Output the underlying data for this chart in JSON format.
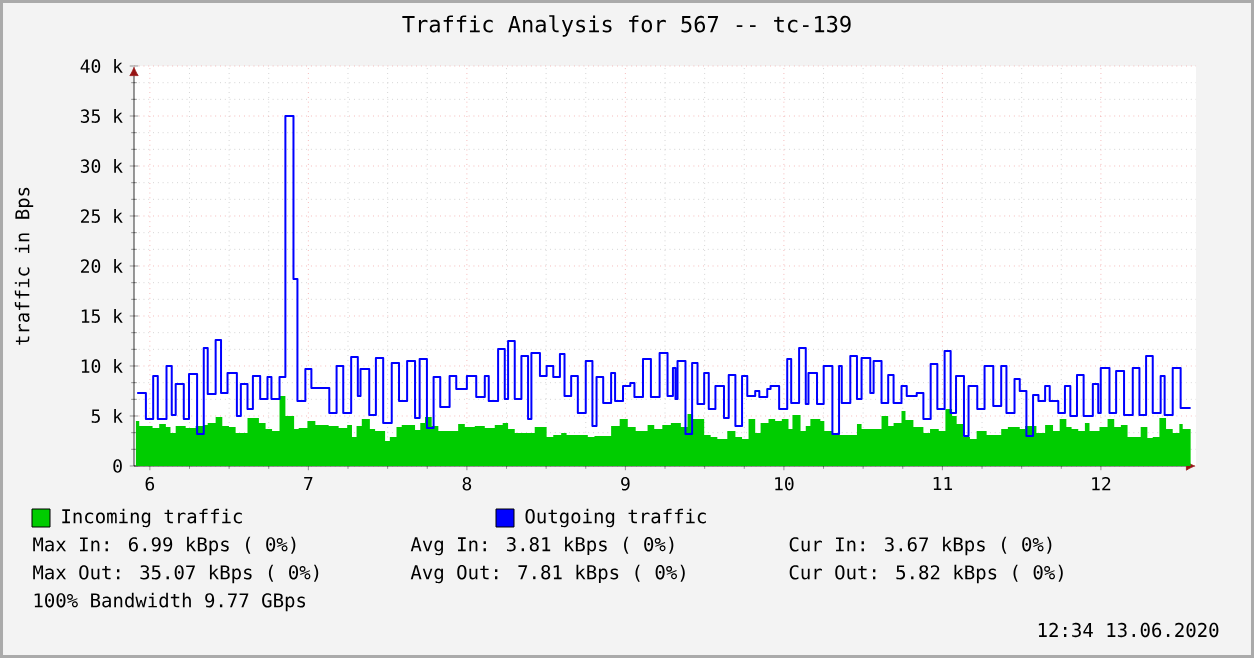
{
  "chart_data": {
    "type": "step",
    "title": "Traffic Analysis for 567 -- tc-139",
    "ylabel": "traffic in Bps",
    "xlim": [
      5.9,
      12.6
    ],
    "xticks": [
      6,
      7,
      8,
      9,
      10,
      11,
      12
    ],
    "ylim": [
      0,
      40
    ],
    "yticks": [
      0,
      {
        "value": 5,
        "label": "5 k"
      },
      {
        "value": 10,
        "label": "10 k"
      },
      {
        "value": 15,
        "label": "15 k"
      },
      {
        "value": 20,
        "label": "20 k"
      },
      {
        "value": 25,
        "label": "25 k"
      },
      {
        "value": 30,
        "label": "30 k"
      },
      {
        "value": 35,
        "label": "35 k"
      },
      {
        "value": 40,
        "label": "40 k"
      }
    ],
    "grid": true,
    "legend": "bottom",
    "series": [
      {
        "name": "Incoming traffic",
        "type": "area",
        "color": "#00cc00",
        "x": [
          5.912,
          5.933,
          6.017,
          6.059,
          6.101,
          6.13,
          6.163,
          6.226,
          6.289,
          6.34,
          6.365,
          6.415,
          6.457,
          6.499,
          6.541,
          6.616,
          6.688,
          6.73,
          6.771,
          6.818,
          6.855,
          6.91,
          6.939,
          6.994,
          7.044,
          7.128,
          7.191,
          7.245,
          7.275,
          7.304,
          7.337,
          7.388,
          7.421,
          7.484,
          7.514,
          7.556,
          7.589,
          7.673,
          7.706,
          7.736,
          7.778,
          7.82,
          7.945,
          7.987,
          8.05,
          8.113,
          8.176,
          8.226,
          8.26,
          8.302,
          8.428,
          8.503,
          8.545,
          8.595,
          8.629,
          8.763,
          8.805,
          8.91,
          8.964,
          9.015,
          9.065,
          9.14,
          9.182,
          9.233,
          9.287,
          9.35,
          9.392,
          9.425,
          9.497,
          9.538,
          9.58,
          9.643,
          9.694,
          9.736,
          9.777,
          9.819,
          9.853,
          9.903,
          9.945,
          9.987,
          10.029,
          10.054,
          10.105,
          10.138,
          10.167,
          10.23,
          10.255,
          10.306,
          10.348,
          10.461,
          10.49,
          10.616,
          10.658,
          10.692,
          10.742,
          10.767,
          10.817,
          10.88,
          10.922,
          10.977,
          11.019,
          11.061,
          11.09,
          11.132,
          11.174,
          11.216,
          11.279,
          11.371,
          11.413,
          11.488,
          11.522,
          11.593,
          11.648,
          11.698,
          11.74,
          11.782,
          11.815,
          11.857,
          11.899,
          11.928,
          11.991,
          12.042,
          12.084,
          12.126,
          12.168,
          12.251,
          12.293,
          12.327,
          12.369,
          12.411,
          12.453,
          12.495,
          12.516,
          12.566
        ],
        "values": [
          4.5,
          4.0,
          3.8,
          4.2,
          3.9,
          3.3,
          4.0,
          3.8,
          4.0,
          4.1,
          4.3,
          4.9,
          4.0,
          3.9,
          3.3,
          4.8,
          4.3,
          3.7,
          3.5,
          7.0,
          5.0,
          3.7,
          3.8,
          4.5,
          4.1,
          4.0,
          3.8,
          4.1,
          2.9,
          4.0,
          4.7,
          3.7,
          3.5,
          2.5,
          2.9,
          3.9,
          4.1,
          3.6,
          4.3,
          4.9,
          4.0,
          3.5,
          4.2,
          3.9,
          4.0,
          3.8,
          4.1,
          4.3,
          3.7,
          3.3,
          3.9,
          2.9,
          3.1,
          3.3,
          3.1,
          2.9,
          3.0,
          4.0,
          4.7,
          3.9,
          3.5,
          4.1,
          3.7,
          4.1,
          4.3,
          3.9,
          5.2,
          4.7,
          3.1,
          2.9,
          2.7,
          3.5,
          2.9,
          2.7,
          4.7,
          3.3,
          4.3,
          4.7,
          4.5,
          4.7,
          3.7,
          5.1,
          3.5,
          4.0,
          4.7,
          4.5,
          3.5,
          3.3,
          3.1,
          4.2,
          3.7,
          5.0,
          4.0,
          4.3,
          5.5,
          4.6,
          3.9,
          3.3,
          3.7,
          3.5,
          5.7,
          5.0,
          4.2,
          2.9,
          2.7,
          3.5,
          3.1,
          3.7,
          3.9,
          3.7,
          4.0,
          3.3,
          4.1,
          3.5,
          4.7,
          3.9,
          3.7,
          3.5,
          4.3,
          3.5,
          3.9,
          4.7,
          3.9,
          4.1,
          2.9,
          3.9,
          2.8,
          2.9,
          4.8,
          3.7,
          3.3,
          4.2,
          3.7,
          3.7
        ]
      },
      {
        "name": "Outgoing traffic",
        "color": "#0000ff",
        "x": [
          5.92,
          5.975,
          6.021,
          6.05,
          6.105,
          6.138,
          6.163,
          6.214,
          6.247,
          6.298,
          6.34,
          6.365,
          6.415,
          6.449,
          6.49,
          6.549,
          6.574,
          6.616,
          6.65,
          6.696,
          6.742,
          6.767,
          6.818,
          6.855,
          6.906,
          6.931,
          6.981,
          7.019,
          7.132,
          7.178,
          7.22,
          7.27,
          7.312,
          7.329,
          7.384,
          7.426,
          7.472,
          7.526,
          7.572,
          7.623,
          7.673,
          7.702,
          7.748,
          7.79,
          7.832,
          7.891,
          7.933,
          8.0,
          8.059,
          8.113,
          8.138,
          8.197,
          8.239,
          8.26,
          8.302,
          8.344,
          8.386,
          8.407,
          8.461,
          8.503,
          8.545,
          8.587,
          8.616,
          8.658,
          8.7,
          8.75,
          8.792,
          8.818,
          8.86,
          8.91,
          8.935,
          8.985,
          9.031,
          9.057,
          9.111,
          9.161,
          9.216,
          9.266,
          9.3,
          9.316,
          9.329,
          9.379,
          9.421,
          9.455,
          9.497,
          9.526,
          9.568,
          9.622,
          9.652,
          9.694,
          9.736,
          9.769,
          9.819,
          9.845,
          9.895,
          9.916,
          9.97,
          10.021,
          10.046,
          10.096,
          10.138,
          10.155,
          10.209,
          10.251,
          10.306,
          10.348,
          10.365,
          10.419,
          10.461,
          10.49,
          10.545,
          10.566,
          10.616,
          10.658,
          10.692,
          10.742,
          10.775,
          10.838,
          10.88,
          10.926,
          10.968,
          11.014,
          11.052,
          11.086,
          11.136,
          11.165,
          11.22,
          11.266,
          11.321,
          11.371,
          11.404,
          11.455,
          11.488,
          11.53,
          11.572,
          11.606,
          11.648,
          11.677,
          11.731,
          11.773,
          11.807,
          11.849,
          11.891,
          11.949,
          11.983,
          11.999,
          12.054,
          12.096,
          12.146,
          12.201,
          12.243,
          12.285,
          12.327,
          12.377,
          12.402,
          12.453,
          12.503,
          12.566
        ],
        "values": [
          7.3,
          4.7,
          9.0,
          4.7,
          10.0,
          5.1,
          8.2,
          4.7,
          9.2,
          3.2,
          11.8,
          7.2,
          12.6,
          7.3,
          9.3,
          5.0,
          8.2,
          5.7,
          9.0,
          6.7,
          8.9,
          6.7,
          8.9,
          35.0,
          18.7,
          6.5,
          9.7,
          7.8,
          5.3,
          10.0,
          5.3,
          10.9,
          7.0,
          9.7,
          5.1,
          10.8,
          4.3,
          10.3,
          6.5,
          10.5,
          4.8,
          10.7,
          3.8,
          8.9,
          5.9,
          9.0,
          7.7,
          9.0,
          6.9,
          9.0,
          6.5,
          11.7,
          6.7,
          12.5,
          6.7,
          11.0,
          4.7,
          11.3,
          9.0,
          10.0,
          8.9,
          11.2,
          7.0,
          9.0,
          5.3,
          10.5,
          4.0,
          8.9,
          6.3,
          9.3,
          6.5,
          8.0,
          8.3,
          6.9,
          10.7,
          6.9,
          11.3,
          7.0,
          9.8,
          6.7,
          10.5,
          3.2,
          10.3,
          6.2,
          9.3,
          5.7,
          8.0,
          4.8,
          9.1,
          4.0,
          9.0,
          7.0,
          7.5,
          6.9,
          7.7,
          8.0,
          5.7,
          10.7,
          6.3,
          11.8,
          6.2,
          9.3,
          6.2,
          10.0,
          3.2,
          10.0,
          6.3,
          11.0,
          6.7,
          10.8,
          7.3,
          10.5,
          6.3,
          9.1,
          6.3,
          8.0,
          7.0,
          7.3,
          4.7,
          10.2,
          5.7,
          11.5,
          5.3,
          9.0,
          3.0,
          8.0,
          5.7,
          10.0,
          6.0,
          10.0,
          5.3,
          8.7,
          7.5,
          3.0,
          7.1,
          6.5,
          8.0,
          6.5,
          5.3,
          8.0,
          5.0,
          9.1,
          5.0,
          8.2,
          5.3,
          9.8,
          5.3,
          9.5,
          5.1,
          9.8,
          5.1,
          11.0,
          5.3,
          9.0,
          5.1,
          9.8,
          5.8,
          5.8
        ]
      }
    ],
    "annotations": [
      "Max In: 6.99 kBps ( 0%)",
      "Avg In: 3.81 kBps ( 0%)",
      "Cur In: 3.67 kBps ( 0%)",
      "Max Out: 35.07 kBps ( 0%)",
      "Avg Out: 7.81 kBps ( 0%)",
      "Cur Out: 5.82 kBps ( 0%)",
      "100% Bandwidth 9.77 GBps",
      "12:34 13.06.2020"
    ]
  }
}
